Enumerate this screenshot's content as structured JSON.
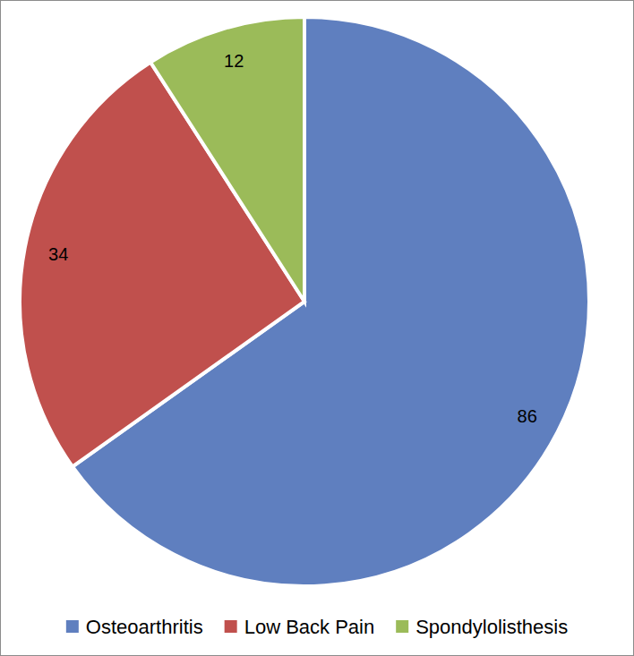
{
  "chart_data": {
    "type": "pie",
    "categories": [
      "Osteoarthritis",
      "Low Back Pain",
      "Spondylolisthesis"
    ],
    "values": [
      86,
      34,
      12
    ],
    "colors": [
      "#5f7fbf",
      "#c0504d",
      "#9bbb59"
    ],
    "data_labels": true,
    "legend": "bottom"
  }
}
